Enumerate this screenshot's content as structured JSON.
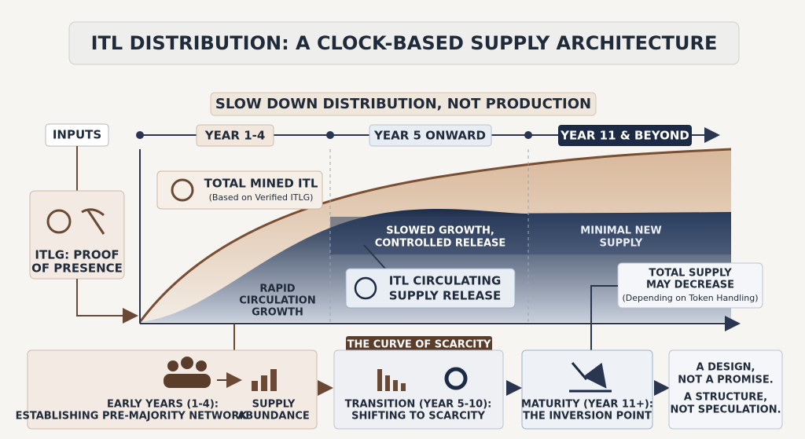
{
  "header": {
    "title": "ITL DISTRIBUTION: A CLOCK-BASED SUPPLY ARCHITECTURE",
    "subtitle": "SLOW DOWN DISTRIBUTION, NOT PRODUCTION"
  },
  "inputs": {
    "label": "INPUTS",
    "source": [
      "ITLG: PROOF",
      "OF PRESENCE"
    ]
  },
  "timeline": [
    "YEAR 1-4",
    "YEAR 5 ONWARD",
    "YEAR 11 & BEYOND"
  ],
  "curves": {
    "total_mined": {
      "title": "TOTAL MINED ITL",
      "note": "(Based on Verified ITLG)"
    },
    "circulating": [
      "ITL CIRCULATING",
      "SUPPLY RELEASE"
    ],
    "regions": [
      [
        "RAPID",
        "CIRCULATION",
        "GROWTH"
      ],
      [
        "SLOWED GROWTH,",
        "CONTROLLED RELEASE"
      ],
      [
        "MINIMAL NEW",
        "SUPPLY"
      ]
    ],
    "decrease": {
      "title": [
        "TOTAL SUPPLY",
        "MAY DECREASE"
      ],
      "note": "(Depending on Token Handling)"
    }
  },
  "scarcity_label": "THE CURVE OF SCARCITY",
  "stages": [
    {
      "lines": [
        "EARLY YEARS (1-4):",
        "ESTABLISHING PRE-MAJORITY NETWORK"
      ],
      "result": [
        "SUPPLY",
        "ABUNDANCE"
      ]
    },
    {
      "lines": [
        "TRANSITION (YEAR 5-10):",
        "SHIFTING TO SCARCITY"
      ]
    },
    {
      "lines": [
        "MATURITY (YEAR 11+):",
        "THE INVERSION POINT"
      ]
    },
    {
      "lines": [
        "A DESIGN,",
        "NOT A PROMISE.",
        "A STRUCTURE,",
        "NOT SPECULATION."
      ]
    }
  ]
}
